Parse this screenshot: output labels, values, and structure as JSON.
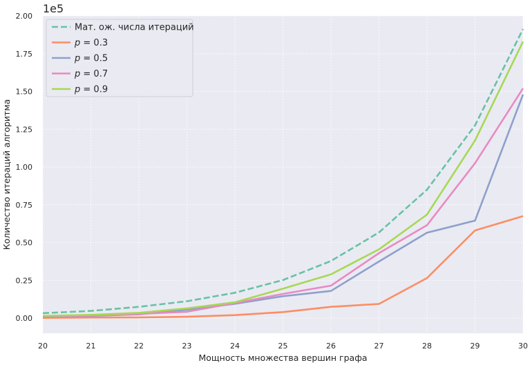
{
  "chart_data": {
    "type": "line",
    "title": "",
    "xlabel": "Мощность множества вершин графа",
    "ylabel": "Количество итераций алгоритма",
    "y_offset_label": "1e5",
    "xlim": [
      20,
      30
    ],
    "ylim": [
      -0.1,
      2.0
    ],
    "y_scale_factor": 100000,
    "x_ticks": [
      20,
      21,
      22,
      23,
      24,
      25,
      26,
      27,
      28,
      29,
      30
    ],
    "y_ticks": [
      0.0,
      0.25,
      0.5,
      0.75,
      1.0,
      1.25,
      1.5,
      1.75,
      2.0
    ],
    "y_tick_labels": [
      "0.00",
      "0.25",
      "0.50",
      "0.75",
      "1.00",
      "1.25",
      "1.50",
      "1.75",
      "2.00"
    ],
    "grid": true,
    "grid_style": "dotted",
    "background": "#eaeaf2",
    "legend_position": "top-left",
    "x": [
      20,
      21,
      22,
      23,
      24,
      25,
      26,
      27,
      28,
      29,
      30
    ],
    "series": [
      {
        "name": "Мат. ож. числа итераций",
        "legend_parts": [
          {
            "text": "Мат. ож. числа итераций",
            "italic": false
          }
        ],
        "color": "#66c2a5",
        "dashed": true,
        "values": [
          0.033,
          0.048,
          0.075,
          0.112,
          0.168,
          0.252,
          0.378,
          0.567,
          0.85,
          1.275,
          1.913
        ]
      },
      {
        "name": "p = 0.3",
        "legend_parts": [
          {
            "text": "p",
            "italic": true
          },
          {
            "text": " = 0.3",
            "italic": false
          }
        ],
        "color": "#fc8d62",
        "dashed": false,
        "values": [
          0.002,
          0.004,
          0.005,
          0.009,
          0.02,
          0.04,
          0.075,
          0.094,
          0.265,
          0.58,
          0.675
        ]
      },
      {
        "name": "p = 0.5",
        "legend_parts": [
          {
            "text": "p",
            "italic": true
          },
          {
            "text": " = 0.5",
            "italic": false
          }
        ],
        "color": "#8da0cb",
        "dashed": false,
        "values": [
          0.01,
          0.015,
          0.025,
          0.055,
          0.095,
          0.145,
          0.18,
          0.375,
          0.565,
          0.645,
          1.48
        ]
      },
      {
        "name": "p = 0.7",
        "legend_parts": [
          {
            "text": "p",
            "italic": true
          },
          {
            "text": " = 0.7",
            "italic": false
          }
        ],
        "color": "#e78ac3",
        "dashed": false,
        "values": [
          0.012,
          0.018,
          0.028,
          0.042,
          0.1,
          0.16,
          0.215,
          0.43,
          0.615,
          1.025,
          1.52
        ]
      },
      {
        "name": "p = 0.9",
        "legend_parts": [
          {
            "text": "p",
            "italic": true
          },
          {
            "text": " = 0.9",
            "italic": false
          }
        ],
        "color": "#a6d854",
        "dashed": false,
        "values": [
          0.015,
          0.022,
          0.035,
          0.065,
          0.105,
          0.195,
          0.29,
          0.455,
          0.685,
          1.175,
          1.83
        ]
      }
    ]
  }
}
